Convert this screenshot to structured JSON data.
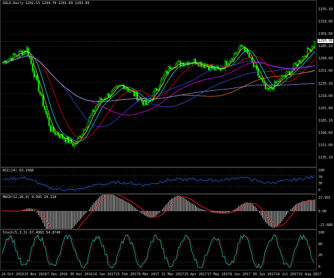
{
  "chart": {
    "symbol_line": "GOLD,Daily  1292.53 1294.70 1291.69 1293.99",
    "last_price": "1293.99",
    "colors": {
      "bg": "#000000",
      "bull": "#00ff00",
      "bear": "#00ff00",
      "grid": "#3a3a3a",
      "text": "#d8d8d8"
    },
    "price_ticks": [
      "1335.10",
      "1318.60",
      "1301.60",
      "1285.10",
      "1268.60",
      "1251.60",
      "1235.10",
      "1218.60",
      "1201.60",
      "1185.10",
      "1168.60",
      "1151.60",
      "1135.10"
    ],
    "rsi": {
      "label": "RSI(14) 63.1568",
      "ticks": [
        "100",
        "70",
        "30",
        "0"
      ]
    },
    "macd": {
      "label": "MACD(12,26,9) 9.995 10.118",
      "ticks": [
        "15.991",
        "0.00",
        "-27.888"
      ]
    },
    "stoch": {
      "label": "Stoch(5,3,3) 67.4081 54.8740",
      "ticks": [
        "100",
        "80",
        "20",
        "0"
      ]
    },
    "time_labels": [
      "24 Oct 2016",
      "15 Nov 2016",
      "7 Dec 2016",
      "30 Dec 2016",
      "24 Jan 2017",
      "15 Feb 2017",
      "9 Mar 2017",
      "31 Mar 2017",
      "25 Apr 2017",
      "17 May 2017",
      "8 Jun 2017",
      "30 Jun 2017",
      "24 Jul 2017",
      "15 Aug 2017"
    ]
  },
  "chart_data": {
    "type": "line",
    "title": "GOLD,Daily",
    "x": [
      "24 Oct 2016",
      "15 Nov 2016",
      "7 Dec 2016",
      "30 Dec 2016",
      "24 Jan 2017",
      "15 Feb 2017",
      "9 Mar 2017",
      "31 Mar 2017",
      "25 Apr 2017",
      "17 May 2017",
      "8 Jun 2017",
      "30 Jun 2017",
      "24 Jul 2017",
      "15 Aug 2017"
    ],
    "series": [
      {
        "values": [
          1266,
          1285,
          1170,
          1148,
          1210,
          1234,
          1205,
          1262,
          1268,
          1254,
          1290,
          1224,
          1254,
          1294
        ]
      }
    ],
    "ylim": [
      1128,
      1340
    ]
  }
}
